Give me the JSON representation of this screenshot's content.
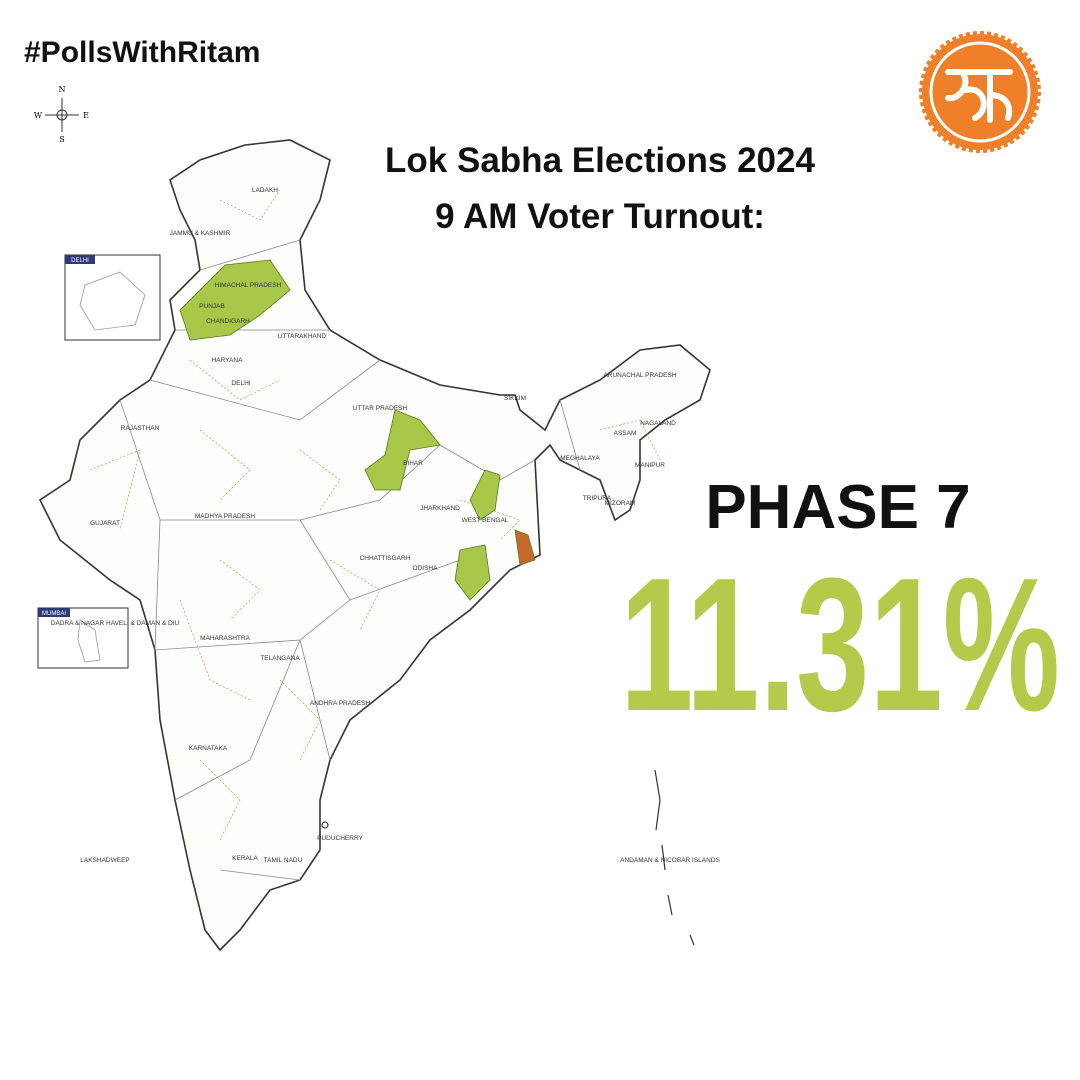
{
  "header": {
    "hashtag": "#PollsWithRitam",
    "title_line1": "Lok Sabha Elections 2024",
    "title_line2": "9 AM Voter Turnout:"
  },
  "phase": "PHASE 7",
  "turnout": "11.31%",
  "map": {
    "compass": [
      "N",
      "E",
      "S",
      "W"
    ],
    "insets": [
      "DELHI",
      "MUMBAI"
    ],
    "labels": [
      "LADAKH",
      "JAMMU & KASHMIR",
      "HIMACHAL PRADESH",
      "PUNJAB",
      "CHANDIGARH",
      "UTTARAKHAND",
      "HARYANA",
      "DELHI",
      "RAJASTHAN",
      "UTTAR PRADESH",
      "BIHAR",
      "SIKKIM",
      "ARUNACHAL PRADESH",
      "ASSAM",
      "NAGALAND",
      "MEGHALAYA",
      "MANIPUR",
      "TRIPURA",
      "MIZORAM",
      "JHARKHAND",
      "WEST BENGAL",
      "GUJARAT",
      "MADHYA PRADESH",
      "CHHATTISGARH",
      "ODISHA",
      "DADRA & NAGAR HAVELI & DAMAN & DIU",
      "MAHARASHTRA",
      "TELANGANA",
      "ANDHRA PRADESH",
      "KARNATAKA",
      "PUDUCHERRY",
      "LAKSHADWEEP",
      "KERALA",
      "TAMIL NADU",
      "ANDAMAN & NICOBAR ISLANDS"
    ]
  }
}
